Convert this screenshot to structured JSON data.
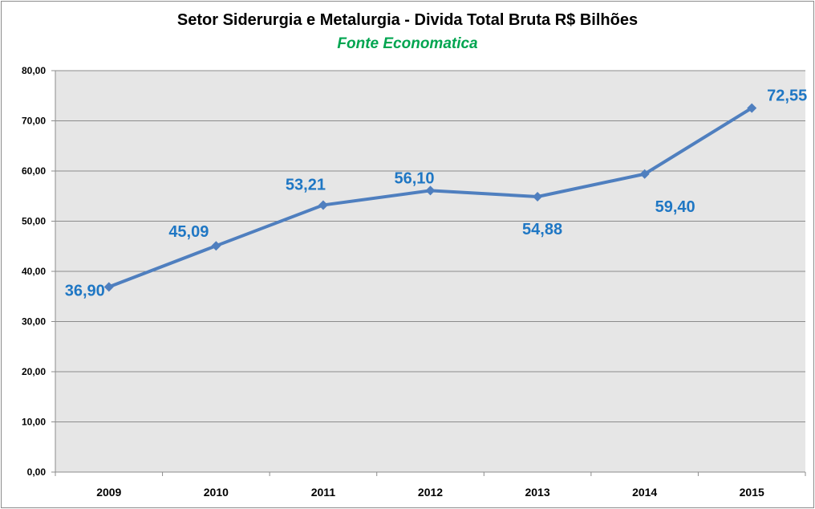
{
  "chart_data": {
    "type": "line",
    "title": "Setor Siderurgia e Metalurgia - Divida Total Bruta R$ Bilhões",
    "subtitle": "Fonte Economatica",
    "xlabel": "",
    "ylabel": "",
    "categories": [
      "2009",
      "2010",
      "2011",
      "2012",
      "2013",
      "2014",
      "2015"
    ],
    "series": [
      {
        "name": "Divida Total Bruta",
        "values": [
          36.9,
          45.09,
          53.21,
          56.1,
          54.88,
          59.4,
          72.55
        ]
      }
    ],
    "data_labels": [
      "36,90",
      "45,09",
      "53,21",
      "56,10",
      "54,88",
      "59,40",
      "72,55"
    ],
    "ylim": [
      0,
      80
    ],
    "yticks": [
      "0,00",
      "10,00",
      "20,00",
      "30,00",
      "40,00",
      "50,00",
      "60,00",
      "70,00",
      "80,00"
    ],
    "grid": true,
    "legend": "none",
    "colors": {
      "line": "#4f7fbf",
      "label": "#1f77c4",
      "subtitle": "#00a550",
      "plot_bg": "#e6e6e6"
    }
  }
}
